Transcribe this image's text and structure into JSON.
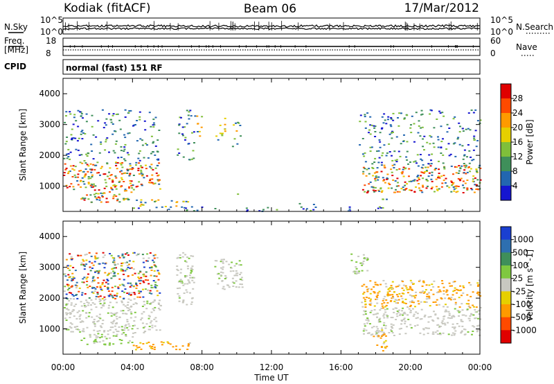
{
  "header": {
    "station": "Kodiak (fitACF)",
    "beam": "Beam 06",
    "date": "17/Mar/2012"
  },
  "noise_panel": {
    "left_label": "N.Sky",
    "right_label": "N.Search",
    "left_ticks": [
      "10^5",
      "10^0"
    ],
    "right_ticks": [
      "10^5",
      "10^0"
    ]
  },
  "freq_panel": {
    "left_label_1": "Freq.",
    "left_label_2": "[MHz]",
    "right_label": "Nave",
    "left_ticks": [
      "18",
      "8"
    ],
    "right_ticks": [
      "60",
      "0"
    ]
  },
  "cpid": {
    "label": "CPID",
    "value": "normal (fast) 151 RF"
  },
  "chart_data": [
    {
      "type": "heatmap",
      "title": "",
      "xlabel": "Time UT",
      "ylabel": "Slant Range [km]",
      "xticks": [
        "00:00",
        "04:00",
        "08:00",
        "12:00",
        "16:00",
        "20:00",
        "00:00"
      ],
      "x_hours": [
        0,
        4,
        8,
        12,
        16,
        20,
        24
      ],
      "xlim_hours": [
        0,
        24
      ],
      "yticks": [
        1000,
        2000,
        3000,
        4000
      ],
      "ylim": [
        180,
        4500
      ],
      "colorbar": {
        "label": "Power [dB]",
        "ticks": [
          "28",
          "24",
          "20",
          "16",
          "12",
          "8",
          "4"
        ],
        "colors": [
          "#e00000",
          "#ff4a00",
          "#ff9a00",
          "#e6cf00",
          "#7fbf3a",
          "#3f8f5a",
          "#2266b0",
          "#1515d0"
        ]
      },
      "scatter_regions": [
        {
          "t": [
            0,
            5.6
          ],
          "r": [
            900,
            1800
          ],
          "level": "high"
        },
        {
          "t": [
            0,
            5.6
          ],
          "r": [
            1800,
            3500
          ],
          "level": "low"
        },
        {
          "t": [
            1,
            4
          ],
          "r": [
            500,
            900
          ],
          "level": "high"
        },
        {
          "t": [
            4,
            7.3
          ],
          "r": [
            350,
            600
          ],
          "level": "mid"
        },
        {
          "t": [
            6.5,
            7.5
          ],
          "r": [
            1800,
            3500
          ],
          "level": "low"
        },
        {
          "t": [
            6.8,
            7.2
          ],
          "r": [
            2500,
            3100
          ],
          "level": "low"
        },
        {
          "t": [
            7.5,
            8
          ],
          "r": [
            2600,
            3300
          ],
          "level": "mid"
        },
        {
          "t": [
            8.7,
            9.3
          ],
          "r": [
            2500,
            3300
          ],
          "level": "mid"
        },
        {
          "t": [
            9.7,
            10.2
          ],
          "r": [
            2300,
            3100
          ],
          "level": "mid"
        },
        {
          "t": [
            10,
            10.6
          ],
          "r": [
            700,
            800
          ],
          "level": "low"
        },
        {
          "t": [
            13.5,
            14.5
          ],
          "r": [
            200,
            500
          ],
          "level": "low"
        },
        {
          "t": [
            17.2,
            24
          ],
          "r": [
            800,
            1700
          ],
          "level": "high"
        },
        {
          "t": [
            17,
            24
          ],
          "r": [
            1700,
            3500
          ],
          "level": "low"
        },
        {
          "t": [
            17.8,
            18.6
          ],
          "r": [
            300,
            1000
          ],
          "level": "low"
        },
        {
          "t": [
            4,
            16.5
          ],
          "r": [
            200,
            350
          ],
          "level": "low"
        }
      ]
    },
    {
      "type": "heatmap",
      "title": "",
      "xlabel": "Time UT",
      "ylabel": "Slant Range [km]",
      "xticks": [
        "00:00",
        "04:00",
        "08:00",
        "12:00",
        "16:00",
        "20:00",
        "00:00"
      ],
      "x_hours": [
        0,
        4,
        8,
        12,
        16,
        20,
        24
      ],
      "xlim_hours": [
        0,
        24
      ],
      "yticks": [
        1000,
        2000,
        3000,
        4000
      ],
      "ylim": [
        180,
        4500
      ],
      "colorbar": {
        "label": "Velocity [m s^-1]",
        "ticks": [
          "1000",
          "500",
          "100",
          "25",
          "-25",
          "-100",
          "-500",
          "-1000"
        ],
        "colors": [
          "#1a3fd0",
          "#2e6fb0",
          "#3f8f5a",
          "#7fc840",
          "#c8c8c0",
          "#e6cf00",
          "#ff9a00",
          "#ff4a00",
          "#e00000"
        ]
      },
      "scatter_regions": [
        {
          "t": [
            0,
            5.6
          ],
          "r": [
            900,
            2000
          ],
          "level": "gs"
        },
        {
          "t": [
            0,
            5.6
          ],
          "r": [
            2000,
            3500
          ],
          "level": "mixed"
        },
        {
          "t": [
            1,
            4
          ],
          "r": [
            500,
            900
          ],
          "level": "pos"
        },
        {
          "t": [
            4,
            7.3
          ],
          "r": [
            350,
            600
          ],
          "level": "neg"
        },
        {
          "t": [
            6.5,
            7.5
          ],
          "r": [
            1800,
            3500
          ],
          "level": "gs"
        },
        {
          "t": [
            8.7,
            10.3
          ],
          "r": [
            2300,
            3300
          ],
          "level": "gs"
        },
        {
          "t": [
            17.2,
            24
          ],
          "r": [
            800,
            1700
          ],
          "level": "gs"
        },
        {
          "t": [
            17,
            24
          ],
          "r": [
            1700,
            2600
          ],
          "level": "neg"
        },
        {
          "t": [
            16.5,
            17.5
          ],
          "r": [
            2800,
            3500
          ],
          "level": "pos"
        },
        {
          "t": [
            17.8,
            18.6
          ],
          "r": [
            300,
            1000
          ],
          "level": "neg"
        }
      ]
    }
  ]
}
